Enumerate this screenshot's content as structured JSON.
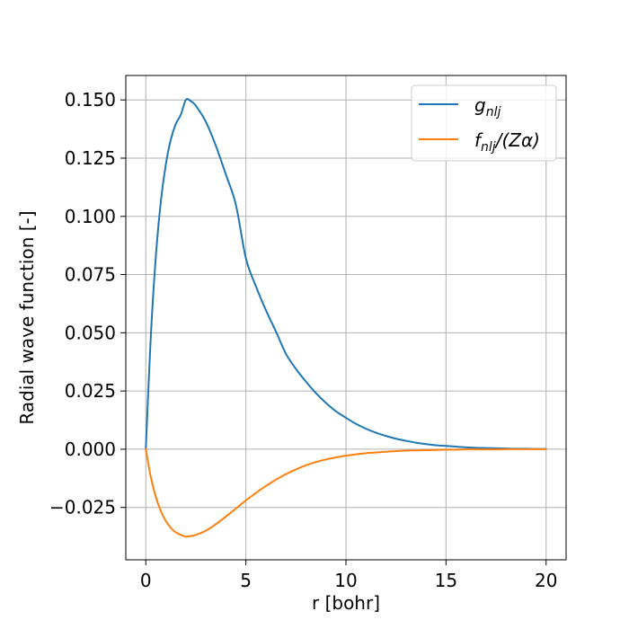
{
  "chart_data": {
    "type": "line",
    "xlabel": "r [bohr]",
    "ylabel": "Radial wave function [-]",
    "xlim": [
      -1,
      21
    ],
    "ylim": [
      -0.0475,
      0.1605
    ],
    "xticks": [
      0,
      5,
      10,
      15,
      20
    ],
    "xtick_labels": [
      "0",
      "5",
      "10",
      "15",
      "20"
    ],
    "yticks": [
      -0.025,
      0.0,
      0.025,
      0.05,
      0.075,
      0.1,
      0.125,
      0.15
    ],
    "ytick_labels": [
      "−0.025",
      "0.000",
      "0.025",
      "0.050",
      "0.075",
      "0.100",
      "0.125",
      "0.150"
    ],
    "grid": true,
    "legend_position": "top-right",
    "series": [
      {
        "name": "g",
        "name_subscript": "nlj",
        "color": "#1f77b4",
        "x": [
          0,
          0.25,
          0.5,
          0.75,
          1,
          1.25,
          1.5,
          1.75,
          2,
          2.25,
          2.5,
          3,
          3.5,
          4,
          4.5,
          5,
          5.5,
          6,
          6.5,
          7,
          7.5,
          8,
          8.5,
          9,
          9.5,
          10,
          10.5,
          11,
          11.5,
          12,
          12.5,
          13,
          13.5,
          14,
          14.5,
          15,
          15.5,
          16,
          16.5,
          17,
          17.5,
          18,
          18.5,
          19,
          19.5,
          20
        ],
        "y": [
          0.0,
          0.0486,
          0.0827,
          0.1063,
          0.1223,
          0.133,
          0.1397,
          0.1437,
          0.15,
          0.1495,
          0.1475,
          0.1406,
          0.1303,
          0.118,
          0.105,
          0.082,
          0.07,
          0.0597,
          0.0506,
          0.041,
          0.0345,
          0.029,
          0.0241,
          0.0199,
          0.0163,
          0.0135,
          0.0109,
          0.0088,
          0.0071,
          0.0057,
          0.0045,
          0.0036,
          0.0028,
          0.0022,
          0.0017,
          0.0014,
          0.0011,
          0.0008,
          0.0006,
          0.0005,
          0.0004,
          0.0003,
          0.0002,
          0.0002,
          0.0001,
          0.0001
        ]
      },
      {
        "name": "f",
        "name_subscript": "nlj",
        "name_suffix": "/(Zα)",
        "color": "#ff7f0e",
        "x": [
          0,
          0.25,
          0.5,
          0.75,
          1,
          1.25,
          1.5,
          1.75,
          2,
          2.25,
          2.5,
          3,
          3.5,
          4,
          4.5,
          5,
          5.5,
          6,
          6.5,
          7,
          7.5,
          8,
          8.5,
          9,
          9.5,
          10,
          10.5,
          11,
          11.5,
          12,
          12.5,
          13,
          13.5,
          14,
          14.5,
          15,
          15.5,
          16,
          16.5,
          17,
          17.5,
          18,
          18.5,
          19,
          19.5,
          20
        ],
        "y": [
          0.0,
          -0.012,
          -0.0205,
          -0.0265,
          -0.0308,
          -0.0338,
          -0.0357,
          -0.0368,
          -0.0375,
          -0.0373,
          -0.0368,
          -0.035,
          -0.0322,
          -0.0289,
          -0.0255,
          -0.022,
          -0.0188,
          -0.0158,
          -0.0131,
          -0.0107,
          -0.0087,
          -0.0069,
          -0.0055,
          -0.0044,
          -0.0035,
          -0.0028,
          -0.0022,
          -0.0017,
          -0.0014,
          -0.0011,
          -0.0008,
          -0.0006,
          -0.0005,
          -0.0004,
          -0.0003,
          -0.0002,
          -0.0002,
          -0.0001,
          -0.0001,
          -0.0001,
          -0.0001,
          0.0,
          0.0,
          0.0,
          0.0,
          0.0
        ]
      }
    ],
    "colors": {
      "grid": "#b0b0b0",
      "axes": "#000000",
      "legend_border": "#cccccc"
    }
  }
}
